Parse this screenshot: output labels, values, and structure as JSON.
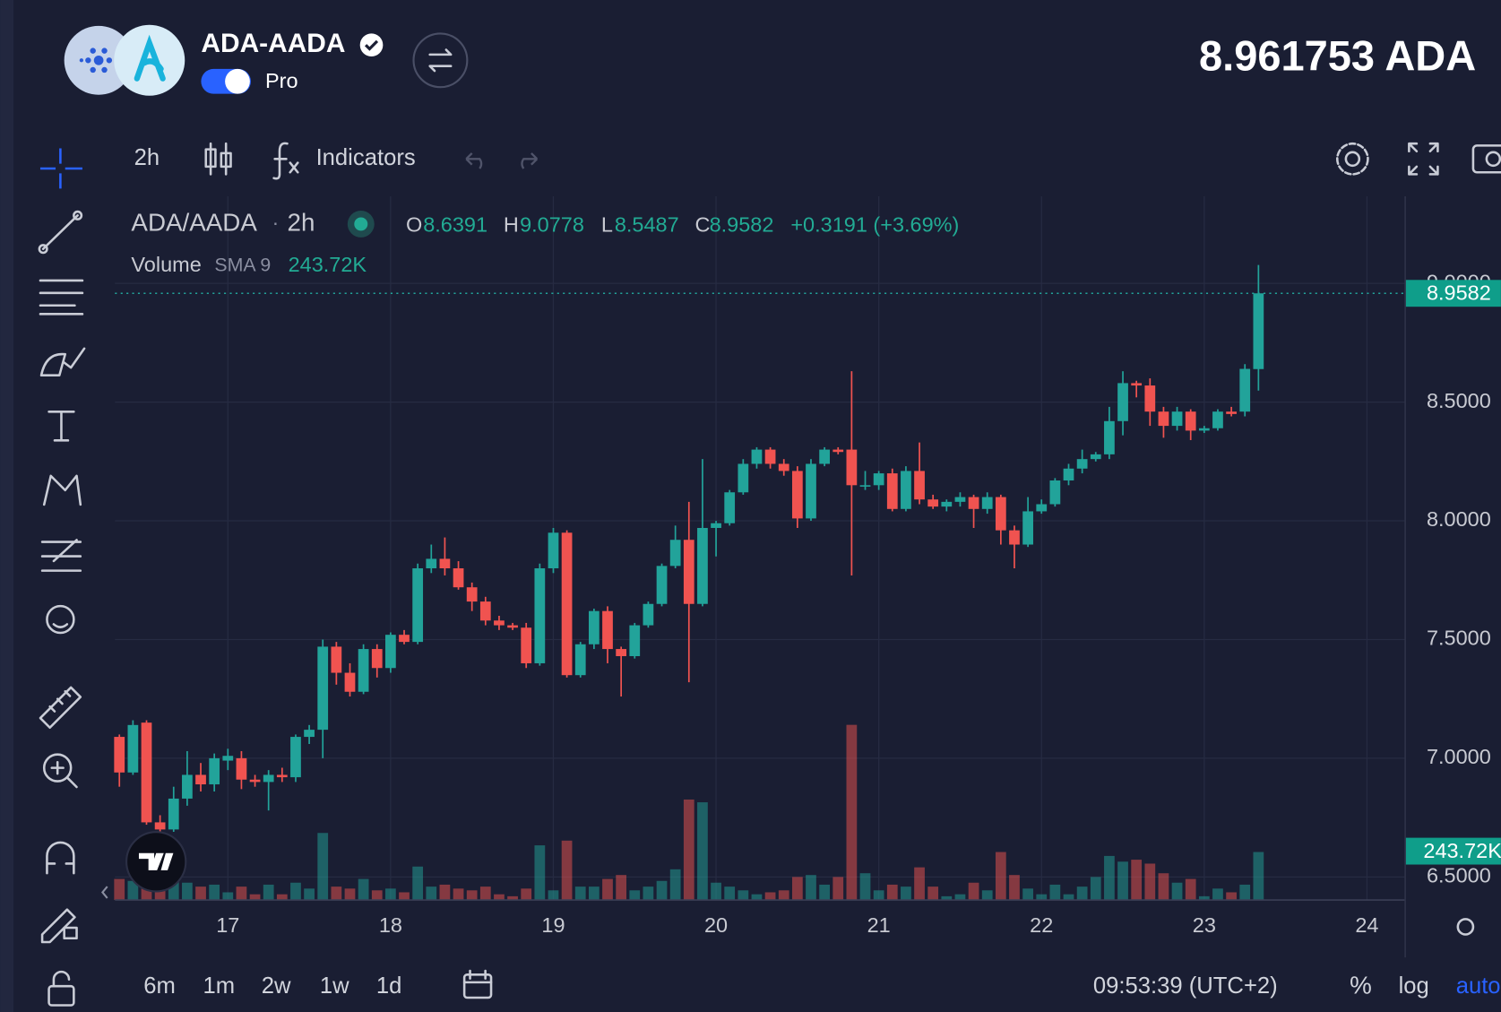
{
  "header": {
    "pair": "ADA-AADA",
    "mode": "Pro",
    "price": "8.961753 ADA"
  },
  "toolbar": {
    "interval": "2h",
    "indicators": "Indicators"
  },
  "legend": {
    "symbol": "ADA/AADA",
    "separator": "·",
    "interval": "2h",
    "o_label": "O",
    "h_label": "H",
    "l_label": "L",
    "c_label": "C",
    "change": "+0.3191 (+3.69%)",
    "volume": "Volume",
    "sma": "SMA 9",
    "sma_value": "243.72K"
  },
  "chart_data": {
    "type": "candlestick",
    "x": [
      16.3333,
      16.4167,
      16.5,
      16.5833,
      16.6667,
      16.75,
      16.8333,
      16.9167,
      17,
      17.0833,
      17.1667,
      17.25,
      17.3333,
      17.4167,
      17.5,
      17.5833,
      17.6667,
      17.75,
      17.8333,
      17.9167,
      18,
      18.0833,
      18.1667,
      18.25,
      18.3333,
      18.4167,
      18.5,
      18.5833,
      18.6667,
      18.75,
      18.8333,
      18.9167,
      19,
      19.0833,
      19.1667,
      19.25,
      19.3333,
      19.4167,
      19.5,
      19.5833,
      19.6667,
      19.75,
      19.8333,
      19.9167,
      20,
      20.0833,
      20.1667,
      20.25,
      20.3333,
      20.4167,
      20.5,
      20.5833,
      20.6667,
      20.75,
      20.8333,
      20.9167,
      21,
      21.0833,
      21.1667,
      21.25,
      21.3333,
      21.4167,
      21.5,
      21.5833,
      21.6667,
      21.75,
      21.8333,
      21.9167,
      22,
      22.0833,
      22.1667,
      22.25,
      22.3333,
      22.4167,
      22.5,
      22.5833,
      22.6667,
      22.75,
      22.8333,
      22.9167,
      23,
      23.0833,
      23.1667,
      23.25,
      23.3333
    ],
    "open": [
      7.09,
      6.94,
      7.15,
      6.73,
      6.7,
      6.83,
      6.93,
      6.89,
      6.99,
      7.0,
      6.91,
      6.9,
      6.93,
      6.92,
      7.09,
      7.12,
      7.47,
      7.36,
      7.28,
      7.46,
      7.38,
      7.52,
      7.49,
      7.8,
      7.84,
      7.8,
      7.72,
      7.66,
      7.58,
      7.56,
      7.55,
      7.4,
      7.8,
      7.95,
      7.35,
      7.48,
      7.62,
      7.46,
      7.43,
      7.56,
      7.65,
      7.81,
      7.92,
      7.65,
      7.97,
      7.99,
      8.12,
      8.24,
      8.3,
      8.24,
      8.21,
      8.01,
      8.24,
      8.3,
      8.3,
      8.15,
      8.15,
      8.2,
      8.05,
      8.21,
      8.09,
      8.06,
      8.08,
      8.1,
      8.05,
      8.1,
      7.96,
      7.9,
      8.04,
      8.07,
      8.17,
      8.22,
      8.26,
      8.28,
      8.42,
      8.58,
      8.57,
      8.46,
      8.4,
      8.46,
      8.38,
      8.39,
      8.46,
      8.46,
      8.6391
    ],
    "high": [
      7.1,
      7.16,
      7.16,
      6.76,
      6.88,
      7.03,
      6.98,
      7.02,
      7.04,
      7.03,
      6.93,
      6.95,
      6.96,
      7.1,
      7.14,
      7.5,
      7.49,
      7.4,
      7.48,
      7.48,
      7.53,
      7.54,
      7.82,
      7.9,
      7.93,
      7.83,
      7.74,
      7.68,
      7.6,
      7.57,
      7.57,
      7.82,
      7.97,
      7.96,
      7.49,
      7.63,
      7.64,
      7.47,
      7.57,
      7.66,
      7.82,
      7.98,
      8.08,
      8.26,
      8.0,
      8.13,
      8.26,
      8.31,
      8.31,
      8.26,
      8.23,
      8.26,
      8.31,
      8.31,
      8.63,
      8.21,
      8.21,
      8.22,
      8.23,
      8.33,
      8.11,
      8.09,
      8.12,
      8.11,
      8.12,
      8.11,
      7.98,
      8.1,
      8.09,
      8.18,
      8.24,
      8.3,
      8.29,
      8.48,
      8.63,
      8.59,
      8.6,
      8.48,
      8.48,
      8.47,
      8.4,
      8.47,
      8.48,
      8.66,
      9.0778
    ],
    "low": [
      6.88,
      6.93,
      6.72,
      6.68,
      6.69,
      6.8,
      6.86,
      6.86,
      6.95,
      6.87,
      6.88,
      6.78,
      6.9,
      6.9,
      7.06,
      7.0,
      7.31,
      7.26,
      7.27,
      7.34,
      7.36,
      7.48,
      7.48,
      7.78,
      7.77,
      7.71,
      7.62,
      7.56,
      7.54,
      7.54,
      7.38,
      7.39,
      7.78,
      7.34,
      7.34,
      7.46,
      7.4,
      7.26,
      7.42,
      7.55,
      7.64,
      7.8,
      7.32,
      7.64,
      7.85,
      7.98,
      8.11,
      8.22,
      8.22,
      8.19,
      7.97,
      8.0,
      8.23,
      8.28,
      7.77,
      8.13,
      8.13,
      8.04,
      8.04,
      8.07,
      8.05,
      8.04,
      8.06,
      7.97,
      8.03,
      7.9,
      7.8,
      7.89,
      8.03,
      8.06,
      8.15,
      8.2,
      8.25,
      8.26,
      8.36,
      8.52,
      8.4,
      8.35,
      8.38,
      8.34,
      8.37,
      8.38,
      8.44,
      8.44,
      8.5487
    ],
    "close": [
      6.94,
      7.14,
      6.73,
      6.7,
      6.83,
      6.93,
      6.89,
      7.0,
      7.01,
      6.91,
      6.9,
      6.93,
      6.92,
      7.09,
      7.12,
      7.47,
      7.36,
      7.28,
      7.46,
      7.38,
      7.52,
      7.49,
      7.8,
      7.84,
      7.8,
      7.72,
      7.66,
      7.58,
      7.56,
      7.55,
      7.4,
      7.8,
      7.95,
      7.35,
      7.48,
      7.62,
      7.46,
      7.43,
      7.56,
      7.65,
      7.81,
      7.92,
      7.65,
      7.97,
      7.99,
      8.12,
      8.24,
      8.3,
      8.24,
      8.21,
      8.01,
      8.24,
      8.3,
      8.29,
      8.15,
      8.15,
      8.2,
      8.05,
      8.21,
      8.09,
      8.06,
      8.08,
      8.1,
      8.05,
      8.1,
      7.96,
      7.9,
      8.04,
      8.07,
      8.17,
      8.22,
      8.26,
      8.28,
      8.42,
      8.58,
      8.57,
      8.46,
      8.4,
      8.46,
      8.38,
      8.39,
      8.46,
      8.45,
      8.64,
      8.9582
    ],
    "volume": [
      107,
      97,
      88,
      49,
      97,
      88,
      68,
      78,
      39,
      68,
      29,
      78,
      29,
      88,
      58,
      341,
      68,
      58,
      107,
      49,
      58,
      39,
      170,
      68,
      78,
      58,
      49,
      68,
      29,
      19,
      58,
      278,
      49,
      302,
      68,
      68,
      107,
      127,
      49,
      68,
      97,
      156,
      511,
      497,
      88,
      68,
      49,
      29,
      39,
      49,
      117,
      127,
      78,
      117,
      891,
      136,
      49,
      78,
      68,
      166,
      68,
      19,
      29,
      88,
      49,
      244,
      127,
      58,
      29,
      78,
      29,
      68,
      117,
      224,
      195,
      205,
      185,
      136,
      88,
      107,
      19,
      58,
      39,
      78,
      244
    ],
    "up_color": "#22a39a",
    "down_color": "#f05350",
    "xlim": [
      16.306,
      24.235
    ],
    "xticks": [
      17,
      18,
      19,
      20,
      21,
      22,
      23,
      24
    ],
    "ylim": [
      6.403,
      9.367
    ],
    "yticks": [
      {
        "value": 6.5,
        "label": "6.5000"
      },
      {
        "value": 7,
        "label": "7.0000"
      },
      {
        "value": 7.5,
        "label": "7.5000"
      },
      {
        "value": 8,
        "label": "8.0000"
      },
      {
        "value": 8.5,
        "label": "8.5000"
      },
      {
        "value": 9,
        "label": "9.0000"
      }
    ],
    "volume_ylim": [
      0,
      1169
    ],
    "grid": true
  },
  "bottom": {
    "ranges": [
      "6m",
      "1m",
      "2w",
      "1w",
      "1d"
    ],
    "time": "09:53:39 (UTC+2)",
    "percent": "%",
    "log": "log",
    "auto": "auto"
  }
}
